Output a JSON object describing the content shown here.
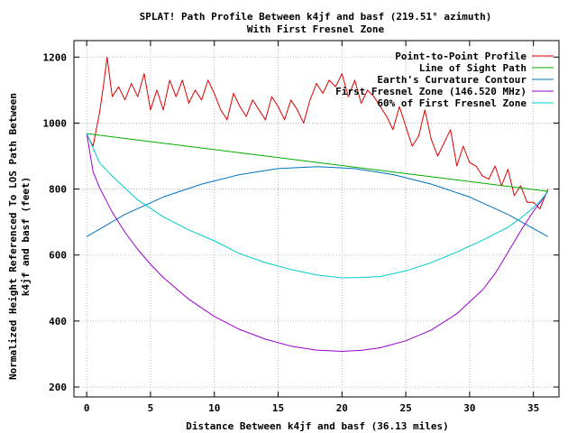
{
  "chart_data": {
    "type": "line",
    "title": "SPLAT! Path Profile Between k4jf and basf (219.51° azimuth)",
    "subtitle": "With First Fresnel Zone",
    "xlabel": "Distance Between k4jf and basf (36.13 miles)",
    "ylabel_line1": "Normalized Height Referenced To LOS Path Between",
    "ylabel_line2": "k4jf and basf (feet)",
    "xlim": [
      -1,
      37
    ],
    "ylim": [
      170,
      1250
    ],
    "x_ticks": [
      0,
      5,
      10,
      15,
      20,
      25,
      30,
      35
    ],
    "y_ticks": [
      200,
      400,
      600,
      800,
      1000,
      1200
    ],
    "grid": true,
    "legend_position": "top-right",
    "x_start": 0,
    "x_end": 36.13,
    "series": [
      {
        "name": "Point-to-Point Profile",
        "color": "#dd0000",
        "x": [
          0,
          0.5,
          1,
          1.3,
          1.6,
          2,
          2.5,
          3,
          3.5,
          4,
          4.5,
          5,
          5.5,
          6,
          6.5,
          7,
          7.5,
          8,
          8.5,
          9,
          9.5,
          10,
          10.5,
          11,
          11.5,
          12,
          12.5,
          13,
          13.5,
          14,
          14.5,
          15,
          15.5,
          16,
          16.5,
          17,
          17.5,
          18,
          18.5,
          19,
          19.5,
          20,
          20.5,
          21,
          21.5,
          22,
          22.5,
          23,
          23.5,
          24,
          24.5,
          25,
          25.5,
          26,
          26.5,
          27,
          27.5,
          28,
          28.5,
          29,
          29.5,
          30,
          30.5,
          31,
          31.5,
          32,
          32.5,
          33,
          33.5,
          34,
          34.5,
          35,
          35.5,
          36.13
        ],
        "y": [
          965,
          930,
          1030,
          1110,
          1200,
          1080,
          1110,
          1070,
          1120,
          1080,
          1150,
          1040,
          1100,
          1040,
          1130,
          1080,
          1130,
          1060,
          1100,
          1070,
          1130,
          1090,
          1040,
          1010,
          1090,
          1050,
          1020,
          1070,
          1040,
          1010,
          1080,
          1050,
          1010,
          1070,
          1040,
          1000,
          1070,
          1120,
          1090,
          1130,
          1110,
          1150,
          1080,
          1130,
          1060,
          1100,
          1080,
          1050,
          1020,
          980,
          1050,
          990,
          930,
          960,
          1040,
          950,
          900,
          940,
          980,
          870,
          930,
          880,
          870,
          840,
          830,
          870,
          810,
          860,
          780,
          810,
          760,
          760,
          740,
          800
        ]
      },
      {
        "name": "Line of Sight Path",
        "color": "#00aa00",
        "x": [
          0,
          36.13
        ],
        "y": [
          968,
          793
        ]
      },
      {
        "name": "Earth's Curvature Contour",
        "color": "#0070c0",
        "x": [
          0,
          3,
          6,
          9,
          12,
          15,
          18.06,
          21,
          24,
          27,
          30,
          33,
          36.13
        ],
        "y": [
          656,
          723,
          776,
          815,
          844,
          862,
          868,
          862,
          844,
          815,
          776,
          723,
          656
        ]
      },
      {
        "name": "First Fresnel Zone (146.520 MHz)",
        "color": "#9900cc",
        "x": [
          0,
          0.5,
          1,
          2,
          3,
          4,
          5,
          6,
          8,
          10,
          12,
          14,
          16,
          18,
          20,
          21.5,
          23,
          25,
          27,
          29,
          31,
          32,
          33,
          34,
          35,
          35.6,
          36.13
        ],
        "y": [
          968,
          853,
          805,
          730,
          669,
          617,
          572,
          532,
          466,
          414,
          374,
          345,
          324,
          312,
          308,
          311,
          319,
          340,
          373,
          422,
          494,
          544,
          608,
          673,
          733,
          763,
          793
        ]
      },
      {
        "name": "60% of First Fresnel Zone",
        "color": "#00cccc",
        "x": [
          0,
          1,
          2,
          4,
          6,
          8,
          10,
          12,
          14,
          16,
          18,
          20,
          21.5,
          23,
          25,
          27,
          29,
          31,
          33,
          34,
          35,
          35.6,
          36.13
        ],
        "y": [
          968,
          880,
          839,
          767,
          716,
          676,
          643,
          604,
          577,
          556,
          540,
          531,
          532,
          535,
          552,
          577,
          609,
          645,
          684,
          712,
          744,
          767,
          793
        ]
      }
    ]
  }
}
